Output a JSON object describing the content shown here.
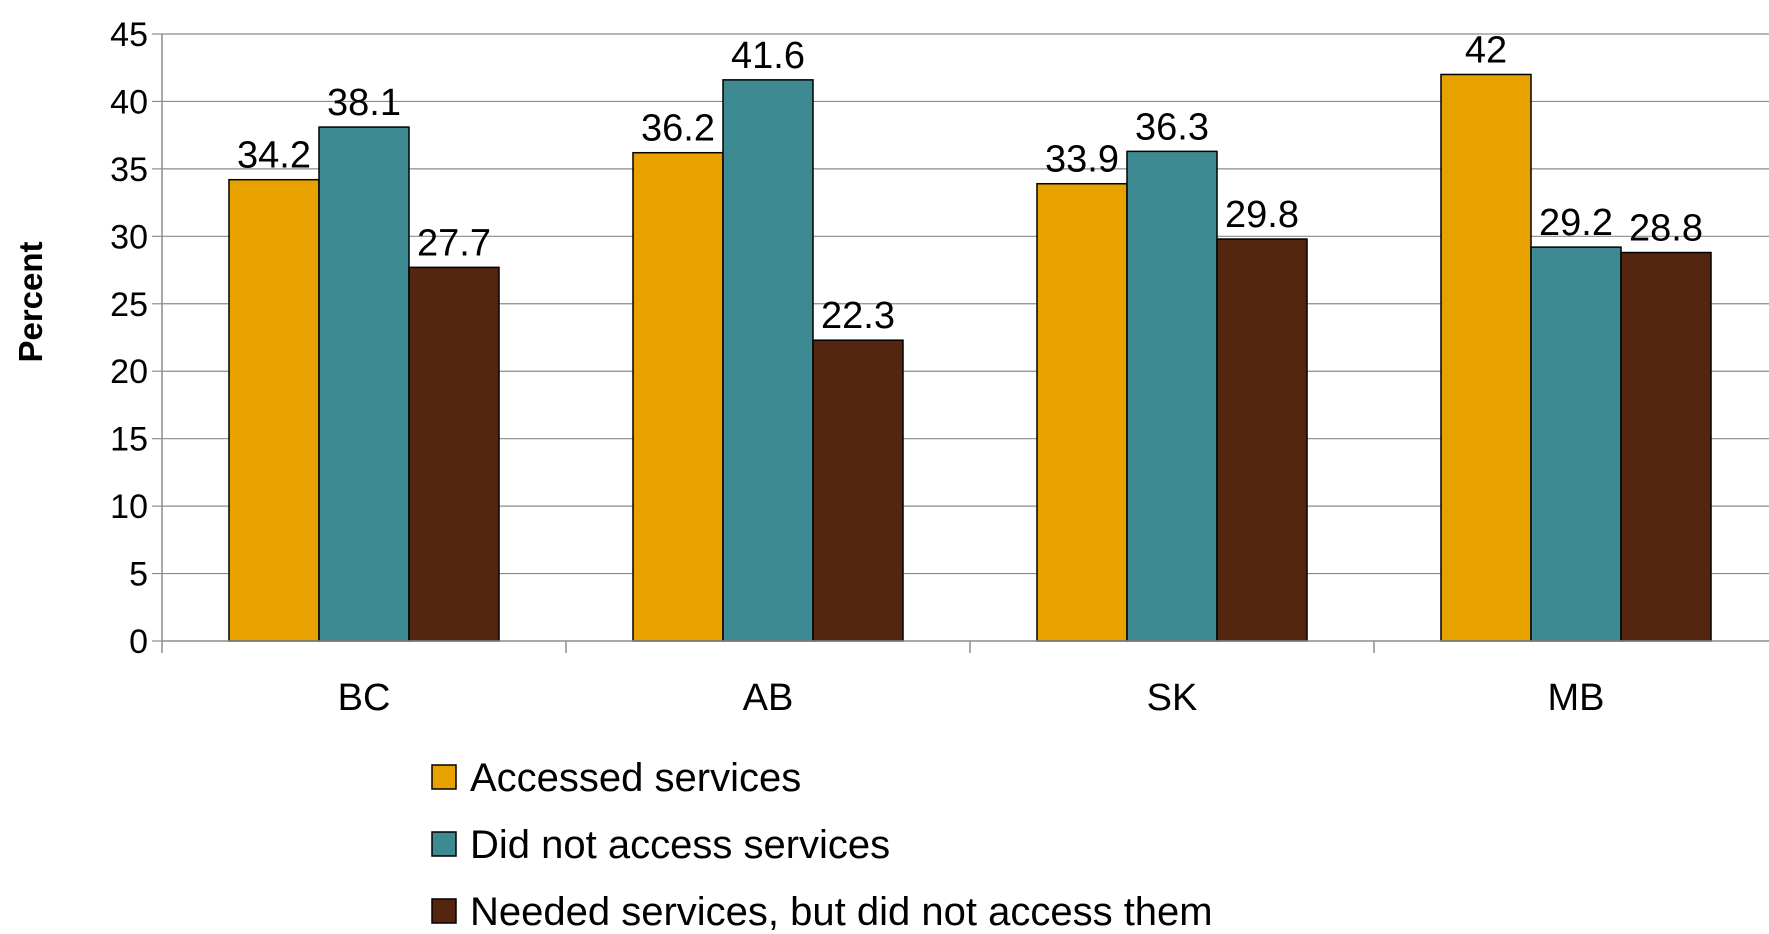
{
  "chart_data": {
    "type": "bar",
    "title": "",
    "xlabel": "",
    "ylabel": "Percent",
    "ylim": [
      0,
      45
    ],
    "y_ticks": [
      0,
      5,
      10,
      15,
      20,
      25,
      30,
      35,
      40,
      45
    ],
    "grid": true,
    "legend_position": "bottom",
    "categories": [
      "BC",
      "AB",
      "SK",
      "MB"
    ],
    "series": [
      {
        "name": "Accessed services",
        "values": [
          34.2,
          36.2,
          33.9,
          42
        ],
        "color": "#E8A200"
      },
      {
        "name": "Did not access services",
        "values": [
          38.1,
          41.6,
          36.3,
          29.2
        ],
        "color": "#3E8A93"
      },
      {
        "name": "Needed services, but did not access them",
        "values": [
          27.7,
          22.3,
          29.8,
          28.8
        ],
        "color": "#55260F"
      }
    ]
  }
}
